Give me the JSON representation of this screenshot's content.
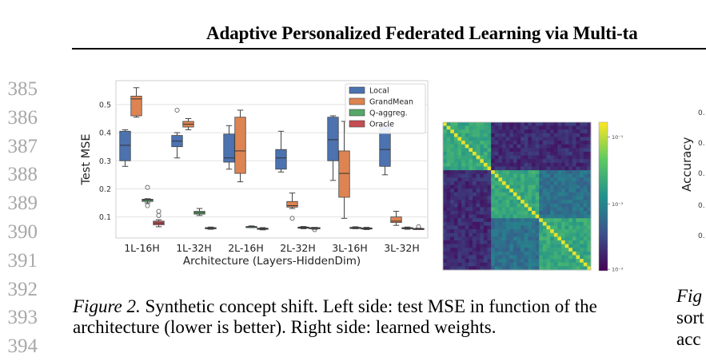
{
  "header": {
    "title": "Adaptive Personalized Federated Learning via Multi-ta"
  },
  "line_numbers": [
    "385",
    "386",
    "387",
    "388",
    "389",
    "390",
    "391",
    "392",
    "393",
    "394"
  ],
  "chart_data": [
    {
      "type": "box",
      "xlabel": "Architecture (Layers-HiddenDim)",
      "ylabel": "Test MSE",
      "categories": [
        "1L-16H",
        "1L-32H",
        "2L-16H",
        "2L-32H",
        "3L-16H",
        "3L-32H"
      ],
      "yticks": [
        "0.1",
        "0.2",
        "0.3",
        "0.4",
        "0.5"
      ],
      "ylim": [
        0.025,
        0.585
      ],
      "grid": true,
      "legend_position": "top-right",
      "series": [
        {
          "name": "Local",
          "color": "#4c72b0",
          "boxes": [
            {
              "min": 0.28,
              "q1": 0.3,
              "median": 0.355,
              "q3": 0.405,
              "max": 0.41,
              "outliers": []
            },
            {
              "min": 0.31,
              "q1": 0.35,
              "median": 0.37,
              "q3": 0.39,
              "max": 0.4,
              "outliers": [
                0.48
              ]
            },
            {
              "min": 0.27,
              "q1": 0.295,
              "median": 0.31,
              "q3": 0.395,
              "max": 0.425,
              "outliers": []
            },
            {
              "min": 0.26,
              "q1": 0.27,
              "median": 0.31,
              "q3": 0.34,
              "max": 0.405,
              "outliers": []
            },
            {
              "min": 0.23,
              "q1": 0.3,
              "median": 0.375,
              "q3": 0.455,
              "max": 0.46,
              "outliers": []
            },
            {
              "min": 0.25,
              "q1": 0.28,
              "median": 0.34,
              "q3": 0.43,
              "max": 0.45,
              "outliers": []
            }
          ]
        },
        {
          "name": "GrandMean",
          "color": "#dd8452",
          "boxes": [
            {
              "min": 0.455,
              "q1": 0.46,
              "median": 0.52,
              "q3": 0.53,
              "max": 0.56,
              "outliers": []
            },
            {
              "min": 0.41,
              "q1": 0.42,
              "median": 0.43,
              "q3": 0.44,
              "max": 0.45,
              "outliers": []
            },
            {
              "min": 0.225,
              "q1": 0.255,
              "median": 0.335,
              "q3": 0.455,
              "max": 0.48,
              "outliers": []
            },
            {
              "min": 0.13,
              "q1": 0.135,
              "median": 0.14,
              "q3": 0.155,
              "max": 0.185,
              "outliers": [
                0.095
              ]
            },
            {
              "min": 0.095,
              "q1": 0.17,
              "median": 0.255,
              "q3": 0.335,
              "max": 0.44,
              "outliers": []
            },
            {
              "min": 0.07,
              "q1": 0.08,
              "median": 0.085,
              "q3": 0.1,
              "max": 0.12,
              "outliers": []
            }
          ]
        },
        {
          "name": "Q-aggreg.",
          "color": "#55a868",
          "boxes": [
            {
              "min": 0.15,
              "q1": 0.155,
              "median": 0.16,
              "q3": 0.163,
              "max": 0.165,
              "outliers": [
                0.205,
                0.14
              ]
            },
            {
              "min": 0.105,
              "q1": 0.11,
              "median": 0.115,
              "q3": 0.12,
              "max": 0.13,
              "outliers": []
            },
            {
              "min": 0.062,
              "q1": 0.064,
              "median": 0.065,
              "q3": 0.066,
              "max": 0.068,
              "outliers": []
            },
            {
              "min": 0.058,
              "q1": 0.06,
              "median": 0.062,
              "q3": 0.064,
              "max": 0.066,
              "outliers": []
            },
            {
              "min": 0.058,
              "q1": 0.06,
              "median": 0.061,
              "q3": 0.063,
              "max": 0.065,
              "outliers": []
            },
            {
              "min": 0.056,
              "q1": 0.058,
              "median": 0.06,
              "q3": 0.062,
              "max": 0.064,
              "outliers": []
            }
          ]
        },
        {
          "name": "Oracle",
          "color": "#c44e52",
          "boxes": [
            {
              "min": 0.065,
              "q1": 0.072,
              "median": 0.078,
              "q3": 0.085,
              "max": 0.09,
              "outliers": [
                0.12,
                0.105
              ]
            },
            {
              "min": 0.056,
              "q1": 0.058,
              "median": 0.06,
              "q3": 0.062,
              "max": 0.064,
              "outliers": []
            },
            {
              "min": 0.054,
              "q1": 0.056,
              "median": 0.058,
              "q3": 0.06,
              "max": 0.062,
              "outliers": []
            },
            {
              "min": 0.056,
              "q1": 0.058,
              "median": 0.06,
              "q3": 0.062,
              "max": 0.063,
              "outliers": [
                0.055
              ]
            },
            {
              "min": 0.055,
              "q1": 0.057,
              "median": 0.059,
              "q3": 0.061,
              "max": 0.063,
              "outliers": []
            },
            {
              "min": 0.056,
              "q1": 0.057,
              "median": 0.058,
              "q3": 0.059,
              "max": 0.06,
              "outliers": [
                0.065
              ]
            }
          ]
        }
      ]
    },
    {
      "type": "heatmap",
      "description_blocks": 3,
      "colormap": "viridis",
      "colorbar_ticks": [
        "10⁻¹",
        "10⁻²",
        "10⁻³"
      ]
    }
  ],
  "caption": {
    "label": "Figure 2.",
    "text": " Synthetic concept shift. Left side: test MSE in function of the architecture (lower is better). Right side: learned weights."
  },
  "right_partial": {
    "ylabel": "Accuracy",
    "ticks": [
      "0.",
      "0.",
      "0.",
      "0.",
      "0."
    ],
    "caption_label": "Fig",
    "caption_lines": [
      "sort",
      "acc"
    ]
  }
}
